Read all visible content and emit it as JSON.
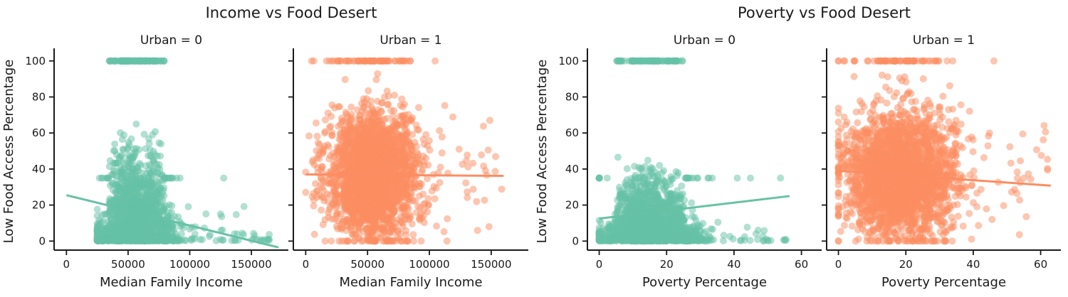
{
  "figures": [
    {
      "title": "Income vs Food Desert"
    },
    {
      "title": "Poverty vs Food Desert"
    }
  ],
  "colors": {
    "urban0": "#66c2a5",
    "urban1": "#fc8d62"
  },
  "chart_data": [
    {
      "type": "scatter",
      "title": "Urban = 0",
      "figure": "Income vs Food Desert",
      "xlabel": "Median Family Income",
      "ylabel": "Low Food Access Percentage",
      "xlim": [
        -10000,
        180000
      ],
      "ylim": [
        -5,
        107
      ],
      "xticks": [
        0,
        50000,
        100000,
        150000
      ],
      "xtick_labels": [
        "0",
        "50000",
        "100000",
        "150000"
      ],
      "yticks": [
        0,
        20,
        40,
        60,
        80,
        100
      ],
      "ytick_labels": [
        "0",
        "20",
        "40",
        "60",
        "80",
        "100"
      ],
      "series": [
        {
          "color": "#66c2a5",
          "center_x": 57000,
          "spread_x": 14000,
          "min_x": 25000,
          "max_x": 172000
        }
      ],
      "regression": {
        "x": [
          0,
          172000
        ],
        "y": [
          25.5,
          -3.5
        ]
      },
      "grid": false
    },
    {
      "type": "scatter",
      "title": "Urban = 1",
      "figure": "Income vs Food Desert",
      "xlabel": "Median Family Income",
      "ylabel": "",
      "xlim": [
        -10000,
        180000
      ],
      "ylim": [
        -5,
        107
      ],
      "xticks": [
        0,
        50000,
        100000,
        150000
      ],
      "xtick_labels": [
        "0",
        "50000",
        "100000",
        "150000"
      ],
      "yticks": [
        0,
        20,
        40,
        60,
        80,
        100
      ],
      "ytick_labels": [],
      "series": [
        {
          "color": "#fc8d62",
          "center_x": 55000,
          "spread_x": 17000,
          "min_x": 0,
          "max_x": 160000
        }
      ],
      "regression": {
        "x": [
          0,
          160000
        ],
        "y": [
          37.0,
          36.2
        ]
      },
      "grid": false
    },
    {
      "type": "scatter",
      "title": "Urban = 0",
      "figure": "Poverty vs Food Desert",
      "xlabel": "Poverty Percentage",
      "ylabel": "Low Food Access Percentage",
      "xlim": [
        -3.5,
        66
      ],
      "ylim": [
        -5,
        107
      ],
      "xticks": [
        0,
        20,
        40,
        60
      ],
      "xtick_labels": [
        "0",
        "20",
        "40",
        "60"
      ],
      "yticks": [
        0,
        20,
        40,
        60,
        80,
        100
      ],
      "ytick_labels": [
        "0",
        "20",
        "40",
        "60",
        "80",
        "100"
      ],
      "series": [
        {
          "color": "#66c2a5",
          "center_x": 15,
          "spread_x": 6.5,
          "min_x": 0,
          "max_x": 57
        }
      ],
      "regression": {
        "x": [
          0,
          56.5
        ],
        "y": [
          12.5,
          25.0
        ]
      },
      "grid": false
    },
    {
      "type": "scatter",
      "title": "Urban = 1",
      "figure": "Poverty vs Food Desert",
      "xlabel": "Poverty Percentage",
      "ylabel": "",
      "xlim": [
        -3.5,
        66
      ],
      "ylim": [
        -5,
        107
      ],
      "xticks": [
        0,
        20,
        40,
        60
      ],
      "xtick_labels": [
        "0",
        "20",
        "40",
        "60"
      ],
      "yticks": [
        0,
        20,
        40,
        60,
        80,
        100
      ],
      "ytick_labels": [],
      "series": [
        {
          "color": "#fc8d62",
          "center_x": 18,
          "spread_x": 8,
          "min_x": 0,
          "max_x": 63
        }
      ],
      "regression": {
        "x": [
          0,
          63
        ],
        "y": [
          39.0,
          30.8
        ]
      },
      "grid": false
    }
  ]
}
